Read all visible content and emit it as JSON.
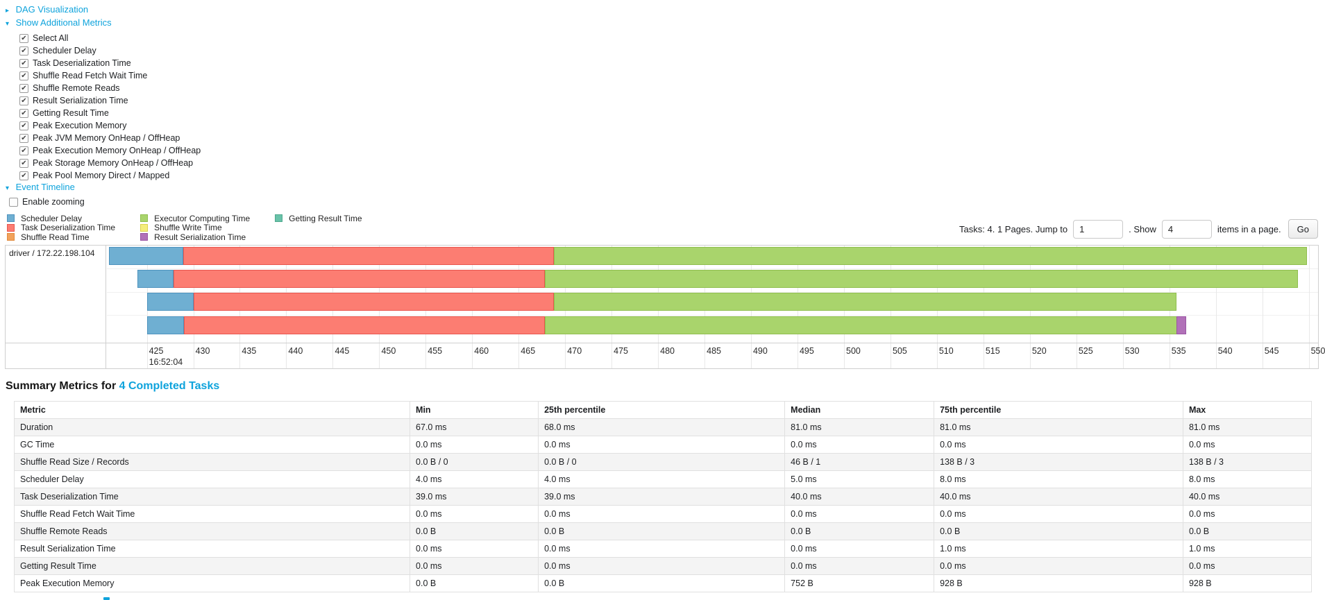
{
  "colors": {
    "link": "#0ea3dc",
    "scheduler_delay": {
      "fill": "#6FAFD2",
      "border": "#4E93BE"
    },
    "task_deserialization": {
      "fill": "#FC7D72",
      "border": "#E8564E"
    },
    "shuffle_read": {
      "fill": "#F2A25C",
      "border": "#E08A3C"
    },
    "executor_computing": {
      "fill": "#A9D46C",
      "border": "#8FBE4E"
    },
    "shuffle_write": {
      "fill": "#F4ED7C",
      "border": "#DAD04F"
    },
    "result_serialization": {
      "fill": "#B171B8",
      "border": "#9A55A3"
    },
    "getting_result": {
      "fill": "#69C2A9",
      "border": "#4FA98E"
    }
  },
  "sections": {
    "dag": {
      "label": "DAG Visualization",
      "collapsed": true
    },
    "metrics": {
      "label": "Show Additional Metrics",
      "collapsed": false
    },
    "timeline": {
      "label": "Event Timeline",
      "collapsed": false
    }
  },
  "metrics_panel": {
    "items": [
      {
        "label": "Select All",
        "checked": true
      },
      {
        "label": "Scheduler Delay",
        "checked": true
      },
      {
        "label": "Task Deserialization Time",
        "checked": true
      },
      {
        "label": "Shuffle Read Fetch Wait Time",
        "checked": true
      },
      {
        "label": "Shuffle Remote Reads",
        "checked": true
      },
      {
        "label": "Result Serialization Time",
        "checked": true
      },
      {
        "label": "Getting Result Time",
        "checked": true
      },
      {
        "label": "Peak Execution Memory",
        "checked": true
      },
      {
        "label": "Peak JVM Memory OnHeap / OffHeap",
        "checked": true
      },
      {
        "label": "Peak Execution Memory OnHeap / OffHeap",
        "checked": true
      },
      {
        "label": "Peak Storage Memory OnHeap / OffHeap",
        "checked": true
      },
      {
        "label": "Peak Pool Memory Direct / Mapped",
        "checked": true
      }
    ]
  },
  "enable_zooming": {
    "label": "Enable zooming",
    "checked": false
  },
  "legend": {
    "items": [
      {
        "label": "Scheduler Delay",
        "color": "scheduler_delay"
      },
      {
        "label": "Task Deserialization Time",
        "color": "task_deserialization"
      },
      {
        "label": "Shuffle Read Time",
        "color": "shuffle_read"
      },
      {
        "label": "Executor Computing Time",
        "color": "executor_computing"
      },
      {
        "label": "Shuffle Write Time",
        "color": "shuffle_write"
      },
      {
        "label": "Result Serialization Time",
        "color": "result_serialization"
      },
      {
        "label": "Getting Result Time",
        "color": "getting_result"
      }
    ]
  },
  "pagination": {
    "tasks_label": "Tasks: 4. 1 Pages. Jump to",
    "jump_value": "1",
    "show_label": ". Show",
    "show_value": "4",
    "items_label": "items in a page.",
    "go_label": "Go"
  },
  "chart_data": {
    "type": "timeline",
    "group_label": "driver / 172.22.198.104",
    "axis_sub_label": "16:52:04",
    "unit": "ms within 16:52:04",
    "window": [
      420.7,
      551.0
    ],
    "tick_start": 425,
    "tick_end": 550,
    "tick_step": 5,
    "tasks": [
      {
        "segments": [
          {
            "type": "scheduler_delay",
            "start": 420.9,
            "end": 428.9
          },
          {
            "type": "task_deserialization",
            "start": 428.9,
            "end": 468.8
          },
          {
            "type": "executor_computing",
            "start": 468.8,
            "end": 549.8
          }
        ]
      },
      {
        "segments": [
          {
            "type": "scheduler_delay",
            "start": 424.0,
            "end": 427.9
          },
          {
            "type": "task_deserialization",
            "start": 427.9,
            "end": 467.8
          },
          {
            "type": "executor_computing",
            "start": 467.8,
            "end": 548.8
          }
        ]
      },
      {
        "segments": [
          {
            "type": "scheduler_delay",
            "start": 425.0,
            "end": 430.0
          },
          {
            "type": "task_deserialization",
            "start": 430.0,
            "end": 468.8
          },
          {
            "type": "executor_computing",
            "start": 468.8,
            "end": 535.8
          }
        ]
      },
      {
        "segments": [
          {
            "type": "scheduler_delay",
            "start": 425.0,
            "end": 429.0
          },
          {
            "type": "task_deserialization",
            "start": 429.0,
            "end": 467.8
          },
          {
            "type": "executor_computing",
            "start": 467.8,
            "end": 535.8
          },
          {
            "type": "result_serialization",
            "start": 535.8,
            "end": 536.8
          }
        ]
      }
    ]
  },
  "summary": {
    "title_prefix": "Summary Metrics for ",
    "title_link": "4 Completed Tasks",
    "headers": [
      "Metric",
      "Min",
      "25th percentile",
      "Median",
      "75th percentile",
      "Max"
    ],
    "col_widths_pct": [
      30.5,
      9.9,
      19.0,
      11.5,
      19.2,
      9.9
    ],
    "rows": [
      {
        "metric": "Duration",
        "values": [
          "67.0 ms",
          "68.0 ms",
          "81.0 ms",
          "81.0 ms",
          "81.0 ms"
        ]
      },
      {
        "metric": "GC Time",
        "values": [
          "0.0 ms",
          "0.0 ms",
          "0.0 ms",
          "0.0 ms",
          "0.0 ms"
        ]
      },
      {
        "metric": "Shuffle Read Size / Records",
        "values": [
          "0.0 B / 0",
          "0.0 B / 0",
          "46 B / 1",
          "138 B / 3",
          "138 B / 3"
        ]
      },
      {
        "metric": "Scheduler Delay",
        "values": [
          "4.0 ms",
          "4.0 ms",
          "5.0 ms",
          "8.0 ms",
          "8.0 ms"
        ]
      },
      {
        "metric": "Task Deserialization Time",
        "values": [
          "39.0 ms",
          "39.0 ms",
          "40.0 ms",
          "40.0 ms",
          "40.0 ms"
        ]
      },
      {
        "metric": "Shuffle Read Fetch Wait Time",
        "values": [
          "0.0 ms",
          "0.0 ms",
          "0.0 ms",
          "0.0 ms",
          "0.0 ms"
        ]
      },
      {
        "metric": "Shuffle Remote Reads",
        "values": [
          "0.0 B",
          "0.0 B",
          "0.0 B",
          "0.0 B",
          "0.0 B"
        ]
      },
      {
        "metric": "Result Serialization Time",
        "values": [
          "0.0 ms",
          "0.0 ms",
          "0.0 ms",
          "1.0 ms",
          "1.0 ms"
        ]
      },
      {
        "metric": "Getting Result Time",
        "values": [
          "0.0 ms",
          "0.0 ms",
          "0.0 ms",
          "0.0 ms",
          "0.0 ms"
        ]
      },
      {
        "metric": "Peak Execution Memory",
        "values": [
          "0.0 B",
          "0.0 B",
          "752 B",
          "928 B",
          "928 B"
        ]
      }
    ]
  }
}
